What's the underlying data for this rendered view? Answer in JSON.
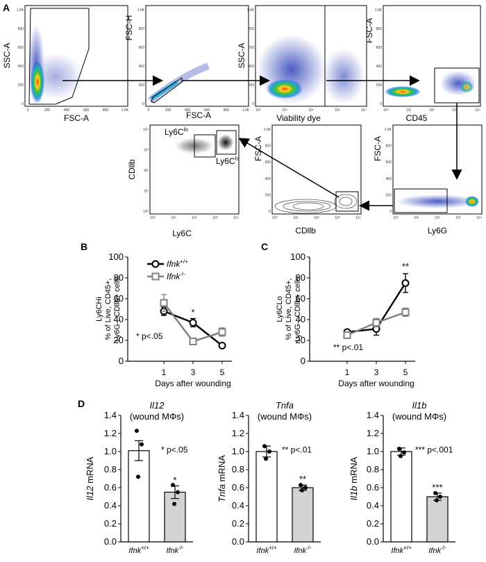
{
  "panel_letters": {
    "a": "A",
    "b": "B",
    "c": "C",
    "d": "D"
  },
  "flow": {
    "p1": {
      "ylabel": "SSC-A",
      "xlabel": "FSC-A",
      "yticks": [
        "0",
        "200",
        "400",
        "600",
        "800",
        "1.0K"
      ],
      "xticks": [
        "0",
        "200",
        "400",
        "600",
        "800",
        "1.0K"
      ]
    },
    "p2": {
      "ylabel": "FSC-H",
      "xlabel": "FSC-A",
      "yticks": [
        "0",
        "200",
        "400",
        "600",
        "800",
        "1.0K"
      ],
      "xticks": [
        "0",
        "200",
        "400",
        "600",
        "800",
        "1.0K"
      ]
    },
    "p3": {
      "ylabel": "SSC-A",
      "xlabel": "Viability dye",
      "yticks": [
        "0",
        "200",
        "400",
        "600",
        "800",
        "1.0K"
      ],
      "xticks": [
        "10⁰",
        "10¹",
        "10²",
        "10³",
        "10⁴"
      ]
    },
    "p4": {
      "ylabel": "FSC-A",
      "xlabel": "CD45",
      "yticks": [
        "0",
        "200",
        "400",
        "600",
        "800",
        "1.0K"
      ],
      "xticks": [
        "10⁰",
        "10¹",
        "10²",
        "10³",
        "10⁴"
      ]
    },
    "p5": {
      "ylabel": "FSC-A",
      "xlabel": "Ly6G",
      "yticks": [
        "0",
        "200",
        "400",
        "600",
        "800",
        "1.0K"
      ],
      "xticks": [
        "10⁰",
        "10¹",
        "10²",
        "10³",
        "10⁴"
      ]
    },
    "p6": {
      "ylabel": "FSC-A",
      "xlabel": "CDllb",
      "yticks": [
        "0",
        "200",
        "400",
        "600",
        "800",
        "1.0K"
      ],
      "xticks": [
        "10⁰",
        "10¹",
        "10²",
        "10³",
        "10⁴"
      ]
    },
    "p7": {
      "ylabel": "CDllb",
      "xlabel": "Ly6C",
      "yticks": [
        "10⁰",
        "10¹",
        "10²",
        "10³",
        "10⁴"
      ],
      "xticks": [
        "10⁰",
        "10¹",
        "10²",
        "10³",
        "10⁴"
      ],
      "gate_lo": "Ly6C",
      "gate_lo_sup": "lo",
      "gate_hi": "Ly6C",
      "gate_hi_sup": "hi"
    }
  },
  "chart_data": [
    {
      "type": "line",
      "panel": "B",
      "ylabel_lines": [
        "Ly6CHi",
        "% of Live, CD45+,",
        "Ly6G-, CDllb+ cells"
      ],
      "xlabel": "Days after wounding",
      "x": [
        1,
        3,
        5
      ],
      "xticks": [
        "1",
        "3",
        "5"
      ],
      "yticks": [
        "0",
        "20",
        "40",
        "60",
        "80",
        "100"
      ],
      "ylim": [
        0,
        100
      ],
      "series": [
        {
          "name": "Ifnk",
          "sup": "+/+",
          "color": "#000000",
          "marker": "circle",
          "values": [
            48,
            37,
            15
          ],
          "err": [
            4,
            4,
            1
          ]
        },
        {
          "name": "Ifnk",
          "sup": "-/-",
          "color": "#808080",
          "marker": "square",
          "values": [
            56,
            19,
            28
          ],
          "err": [
            8,
            1,
            4
          ]
        }
      ],
      "annotations": [
        {
          "x": 3,
          "y": 44,
          "text": "*"
        }
      ],
      "sig_note": {
        "star": "*",
        "text": "p<.05"
      }
    },
    {
      "type": "line",
      "panel": "C",
      "ylabel_lines": [
        "Ly6CLo",
        "% of Live, CD45+,",
        "Ly6G-, CDllb+ cells"
      ],
      "xlabel": "Days after wounding",
      "x": [
        1,
        3,
        5
      ],
      "xticks": [
        "1",
        "3",
        "5"
      ],
      "yticks": [
        "0",
        "20",
        "40",
        "60",
        "80",
        "100"
      ],
      "ylim": [
        0,
        100
      ],
      "series": [
        {
          "name": "Ifnk",
          "sup": "+/+",
          "color": "#000000",
          "marker": "circle",
          "values": [
            28,
            31,
            75
          ],
          "err": [
            1,
            6,
            9
          ]
        },
        {
          "name": "Ifnk",
          "sup": "-/-",
          "color": "#808080",
          "marker": "square",
          "values": [
            25,
            37,
            47
          ],
          "err": [
            2,
            4,
            4
          ]
        }
      ],
      "annotations": [
        {
          "x": 5,
          "y": 88,
          "text": "**"
        }
      ],
      "sig_note": {
        "star": "**",
        "text": "p<.01"
      }
    },
    {
      "type": "bar",
      "panel": "D1",
      "title_gene": "Il12",
      "subtitle": "(wound MΦs)",
      "ylabel_gene": "Il12",
      "ylabel_rest": " mRNA",
      "yticks": [
        "0.0",
        "0.2",
        "0.4",
        "0.6",
        "0.8",
        "1.0",
        "1.2",
        "1.4"
      ],
      "ylim": [
        0,
        1.4
      ],
      "categories": [
        {
          "name": "Ifnk",
          "sup": "+/+"
        },
        {
          "name": "Ifnk",
          "sup": "-/-"
        }
      ],
      "values": [
        1.01,
        0.55
      ],
      "err": [
        0.11,
        0.07
      ],
      "points": [
        [
          1.23,
          1.08,
          0.72
        ],
        [
          0.63,
          0.55,
          0.42
        ]
      ],
      "fills": [
        "#ffffff",
        "#d3d3d3"
      ],
      "bar_stars": [
        "",
        "*"
      ],
      "sig_note": {
        "star": "*",
        "text": "p<.05"
      }
    },
    {
      "type": "bar",
      "panel": "D2",
      "title_gene": "Tnfa",
      "subtitle": "(wound MΦs)",
      "ylabel_gene": "Tnfa",
      "ylabel_rest": " mRNA",
      "yticks": [
        "0.0",
        "0.2",
        "0.4",
        "0.6",
        "0.8",
        "1.0",
        "1.2",
        "1.4"
      ],
      "ylim": [
        0,
        1.4
      ],
      "categories": [
        {
          "name": "Ifnk",
          "sup": "+/+"
        },
        {
          "name": "Ifnk",
          "sup": "-/-"
        }
      ],
      "values": [
        1.0,
        0.6
      ],
      "err": [
        0.06,
        0.03
      ],
      "points": [
        [
          1.06,
          1.0,
          0.92
        ],
        [
          0.63,
          0.6,
          0.57
        ]
      ],
      "fills": [
        "#ffffff",
        "#d3d3d3"
      ],
      "bar_stars": [
        "",
        "**"
      ],
      "sig_note": {
        "star": "**",
        "text": "p<.01"
      }
    },
    {
      "type": "bar",
      "panel": "D3",
      "title_gene": "Il1b",
      "subtitle": "(wound MΦs)",
      "ylabel_gene": "Il1b",
      "ylabel_rest": " mRNA",
      "yticks": [
        "0.0",
        "0.2",
        "0.4",
        "0.6",
        "0.8",
        "1.0",
        "1.2",
        "1.4"
      ],
      "ylim": [
        0,
        1.4
      ],
      "categories": [
        {
          "name": "Ifnk",
          "sup": "+/+"
        },
        {
          "name": "Ifnk",
          "sup": "-/-"
        }
      ],
      "values": [
        1.0,
        0.5
      ],
      "err": [
        0.04,
        0.04
      ],
      "points": [
        [
          1.03,
          0.99,
          0.95
        ],
        [
          0.54,
          0.5,
          0.46
        ]
      ],
      "fills": [
        "#ffffff",
        "#d3d3d3"
      ],
      "bar_stars": [
        "",
        "***"
      ],
      "sig_note": {
        "star": "***",
        "text": "p<.001"
      }
    }
  ]
}
